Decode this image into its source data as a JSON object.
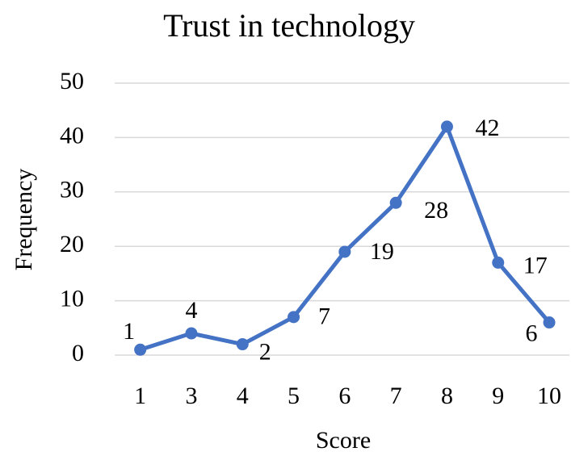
{
  "chart_data": {
    "type": "line",
    "title": "Trust in technology",
    "x_label": "Score",
    "y_label": "Frequency",
    "categories": [
      "1",
      "3",
      "4",
      "5",
      "6",
      "7",
      "8",
      "9",
      "10"
    ],
    "series": [
      {
        "name": "Frequency",
        "color": "#4472c4",
        "values": [
          1,
          4,
          2,
          7,
          19,
          28,
          42,
          17,
          6
        ]
      }
    ],
    "ylim": [
      0,
      50
    ],
    "yticks": [
      0,
      10,
      20,
      30,
      40,
      50
    ],
    "grid": true
  }
}
